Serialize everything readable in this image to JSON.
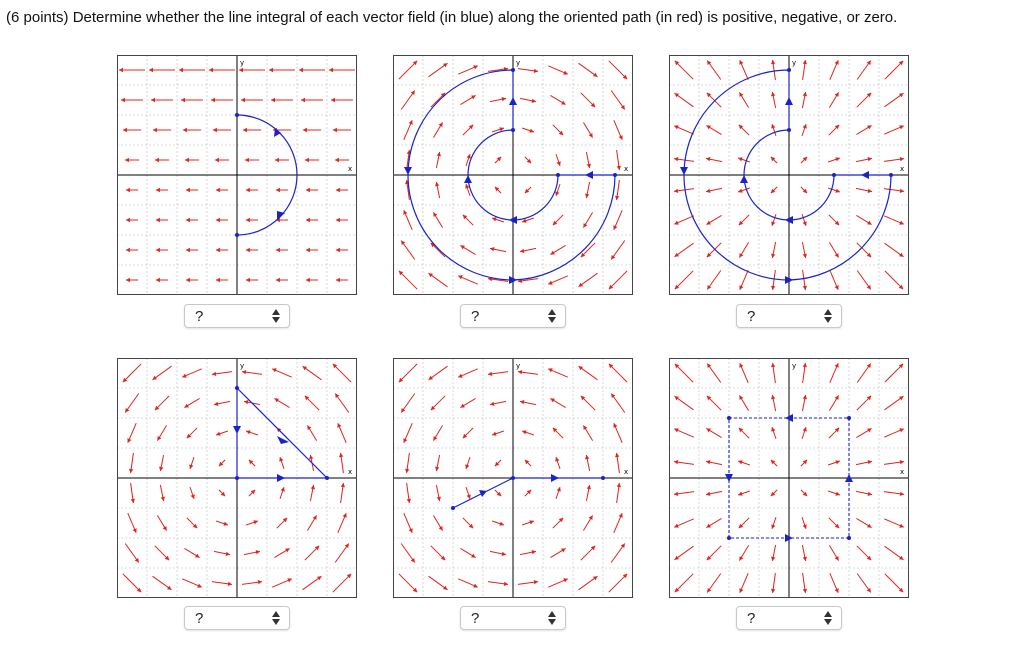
{
  "question": "(6 points) Determine whether the line integral of each vector field (in blue) along the oriented path (in red) is positive, negative, or zero.",
  "axis_labels": {
    "x": "x",
    "y": "y"
  },
  "colors": {
    "field": "#e0241b",
    "path": "#1a22c8",
    "axes": "#000000",
    "grid": "#b8b8b8"
  },
  "plots": [
    {
      "id": "p1",
      "field": "horizontal-left",
      "path": "right-semicircle"
    },
    {
      "id": "p2",
      "field": "swirl-clockwise",
      "path": "spiral"
    },
    {
      "id": "p3",
      "field": "radial-outward",
      "path": "spiral"
    },
    {
      "id": "p4",
      "field": "swirl-counterclockwise",
      "path": "triangle"
    },
    {
      "id": "p5",
      "field": "swirl-counterclockwise",
      "path": "broken-line"
    },
    {
      "id": "p6",
      "field": "radial-outward",
      "path": "rectangle"
    }
  ],
  "answers": [
    {
      "value": "?",
      "arrows_icon": "up-down-arrows-icon"
    },
    {
      "value": "?",
      "arrows_icon": "up-down-arrows-icon"
    },
    {
      "value": "?",
      "arrows_icon": "up-down-arrows-icon"
    },
    {
      "value": "?",
      "arrows_icon": "up-down-arrows-icon"
    },
    {
      "value": "?",
      "arrows_icon": "up-down-arrows-icon"
    },
    {
      "value": "?",
      "arrows_icon": "up-down-arrows-icon"
    }
  ]
}
